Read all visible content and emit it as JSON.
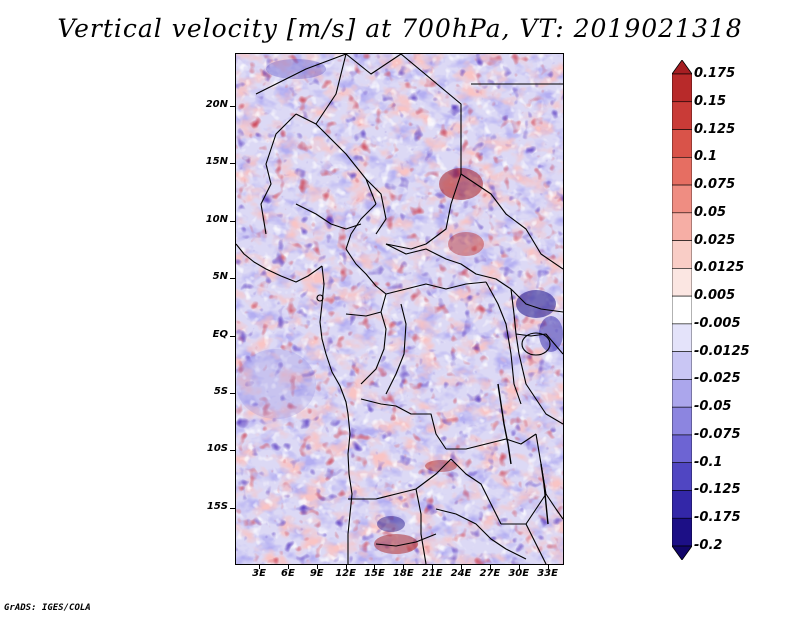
{
  "title": "Vertical velocity [m/s] at 700hPa, VT: 2019021318",
  "footer": "GrADS: IGES/COLA",
  "map": {
    "lat_labels": [
      "20N",
      "15N",
      "10N",
      "5N",
      "EQ",
      "5S",
      "10S",
      "15S"
    ],
    "lon_labels": [
      "3E",
      "6E",
      "9E",
      "12E",
      "15E",
      "18E",
      "21E",
      "24E",
      "27E",
      "30E",
      "33E"
    ],
    "lat_range": [
      -19.8,
      24.6
    ],
    "lon_range": [
      0.5,
      34.5
    ]
  },
  "colorbar": {
    "labels": [
      "0.175",
      "0.15",
      "0.125",
      "0.1",
      "0.075",
      "0.05",
      "0.025",
      "0.0125",
      "0.005",
      "-0.005",
      "-0.0125",
      "-0.025",
      "-0.05",
      "-0.075",
      "-0.1",
      "-0.125",
      "-0.175",
      "-0.2"
    ],
    "colors": [
      "#a61e22",
      "#b82a2a",
      "#c93b37",
      "#d95349",
      "#e66e62",
      "#ef8d82",
      "#f6aea5",
      "#f9cdc6",
      "#fbe6e2",
      "#ffffff",
      "#e4e3fa",
      "#c9c6f4",
      "#aba6ec",
      "#8c85e0",
      "#6d64d3",
      "#5046c2",
      "#3327a8",
      "#1c0f86",
      "#12066a"
    ]
  }
}
